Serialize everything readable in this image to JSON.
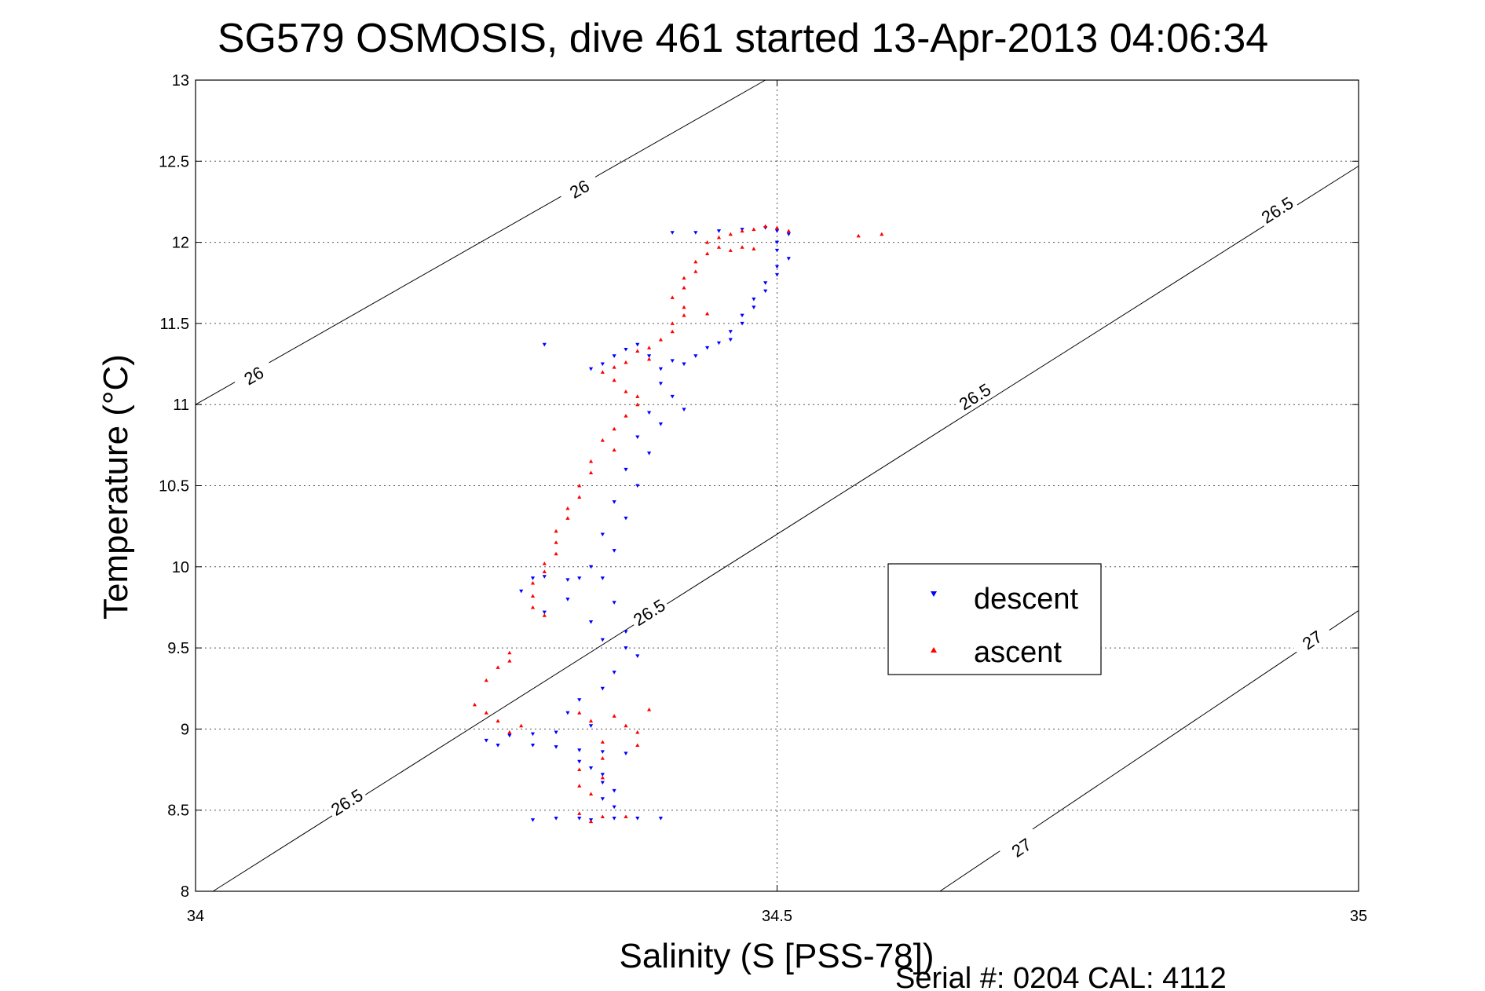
{
  "chart_data": {
    "type": "scatter",
    "title": "SG579 OSMOSIS, dive 461 started 13-Apr-2013 04:06:34",
    "xlabel": "Salinity (S [PSS-78])",
    "ylabel": "Temperature (°C)",
    "xlim": [
      34,
      35
    ],
    "ylim": [
      8,
      13
    ],
    "xticks": [
      "34",
      "34.5",
      "35"
    ],
    "yticks": [
      "8",
      "8.5",
      "9",
      "9.5",
      "10",
      "10.5",
      "11",
      "11.5",
      "12",
      "12.5",
      "13"
    ],
    "grid": true,
    "legend_position": "right-middle",
    "colors": {
      "descent": "#0000ff",
      "ascent": "#ff0000"
    },
    "legend": [
      "descent",
      "ascent"
    ],
    "density_contours": [
      {
        "value": "26",
        "line": [
          [
            34.0,
            11.0
          ],
          [
            34.49,
            13.0
          ]
        ],
        "labels": [
          {
            "x": 34.05,
            "y": 11.18
          },
          {
            "x": 34.33,
            "y": 12.33
          }
        ]
      },
      {
        "value": "26.5",
        "line": [
          [
            34.015,
            8.0
          ],
          [
            35.0,
            12.47
          ]
        ],
        "labels": [
          {
            "x": 34.13,
            "y": 8.55
          },
          {
            "x": 34.39,
            "y": 9.72
          },
          {
            "x": 34.67,
            "y": 11.05
          },
          {
            "x": 34.93,
            "y": 12.2
          }
        ]
      },
      {
        "value": "27",
        "line": [
          [
            34.64,
            8.0
          ],
          [
            35.0,
            9.73
          ]
        ],
        "labels": [
          {
            "x": 34.71,
            "y": 8.27
          },
          {
            "x": 34.96,
            "y": 9.55
          }
        ]
      }
    ],
    "series": [
      {
        "name": "descent",
        "marker": "triangle-down",
        "points": [
          [
            34.41,
            12.06
          ],
          [
            34.43,
            12.06
          ],
          [
            34.45,
            12.07
          ],
          [
            34.47,
            12.08
          ],
          [
            34.49,
            12.09
          ],
          [
            34.5,
            12.07
          ],
          [
            34.51,
            12.05
          ],
          [
            34.5,
            12.0
          ],
          [
            34.5,
            11.95
          ],
          [
            34.51,
            11.9
          ],
          [
            34.5,
            11.85
          ],
          [
            34.5,
            11.8
          ],
          [
            34.49,
            11.75
          ],
          [
            34.49,
            11.7
          ],
          [
            34.48,
            11.65
          ],
          [
            34.48,
            11.6
          ],
          [
            34.47,
            11.55
          ],
          [
            34.47,
            11.5
          ],
          [
            34.46,
            11.45
          ],
          [
            34.46,
            11.4
          ],
          [
            34.45,
            11.38
          ],
          [
            34.44,
            11.35
          ],
          [
            34.43,
            11.3
          ],
          [
            34.42,
            11.25
          ],
          [
            34.41,
            11.27
          ],
          [
            34.4,
            11.22
          ],
          [
            34.39,
            11.3
          ],
          [
            34.38,
            11.37
          ],
          [
            34.37,
            11.34
          ],
          [
            34.36,
            11.3
          ],
          [
            34.35,
            11.25
          ],
          [
            34.34,
            11.22
          ],
          [
            34.4,
            11.13
          ],
          [
            34.41,
            11.05
          ],
          [
            34.42,
            10.97
          ],
          [
            34.39,
            10.95
          ],
          [
            34.4,
            10.88
          ],
          [
            34.38,
            10.8
          ],
          [
            34.39,
            10.7
          ],
          [
            34.37,
            10.6
          ],
          [
            34.38,
            10.5
          ],
          [
            34.36,
            10.4
          ],
          [
            34.37,
            10.3
          ],
          [
            34.35,
            10.2
          ],
          [
            34.36,
            10.1
          ],
          [
            34.34,
            10.0
          ],
          [
            34.35,
            9.93
          ],
          [
            34.33,
            9.93
          ],
          [
            34.32,
            9.92
          ],
          [
            34.3,
            9.94
          ],
          [
            34.29,
            9.93
          ],
          [
            34.28,
            9.85
          ],
          [
            34.32,
            9.8
          ],
          [
            34.36,
            9.78
          ],
          [
            34.3,
            9.72
          ],
          [
            34.34,
            9.66
          ],
          [
            34.37,
            9.6
          ],
          [
            34.35,
            9.55
          ],
          [
            34.37,
            9.5
          ],
          [
            34.38,
            9.45
          ],
          [
            34.36,
            9.35
          ],
          [
            34.35,
            9.25
          ],
          [
            34.33,
            9.18
          ],
          [
            34.32,
            9.1
          ],
          [
            34.34,
            9.02
          ],
          [
            34.31,
            8.98
          ],
          [
            34.29,
            8.97
          ],
          [
            34.27,
            8.96
          ],
          [
            34.25,
            8.93
          ],
          [
            34.26,
            8.9
          ],
          [
            34.29,
            8.9
          ],
          [
            34.31,
            8.89
          ],
          [
            34.33,
            8.87
          ],
          [
            34.35,
            8.86
          ],
          [
            34.37,
            8.85
          ],
          [
            34.33,
            8.8
          ],
          [
            34.34,
            8.76
          ],
          [
            34.35,
            8.72
          ],
          [
            34.35,
            8.67
          ],
          [
            34.36,
            8.62
          ],
          [
            34.35,
            8.57
          ],
          [
            34.36,
            8.52
          ],
          [
            34.31,
            8.45
          ],
          [
            34.33,
            8.45
          ],
          [
            34.34,
            8.44
          ],
          [
            34.36,
            8.45
          ],
          [
            34.38,
            8.45
          ],
          [
            34.4,
            8.45
          ],
          [
            34.29,
            8.44
          ],
          [
            34.3,
            11.37
          ]
        ]
      },
      {
        "name": "ascent",
        "marker": "triangle-up",
        "points": [
          [
            34.51,
            12.07
          ],
          [
            34.5,
            12.09
          ],
          [
            34.49,
            12.1
          ],
          [
            34.48,
            12.08
          ],
          [
            34.47,
            12.07
          ],
          [
            34.46,
            12.05
          ],
          [
            34.45,
            12.03
          ],
          [
            34.44,
            12.0
          ],
          [
            34.45,
            11.97
          ],
          [
            34.46,
            11.95
          ],
          [
            34.47,
            11.97
          ],
          [
            34.48,
            11.96
          ],
          [
            34.44,
            11.93
          ],
          [
            34.43,
            11.88
          ],
          [
            34.43,
            11.82
          ],
          [
            34.42,
            11.78
          ],
          [
            34.42,
            11.72
          ],
          [
            34.41,
            11.66
          ],
          [
            34.42,
            11.6
          ],
          [
            34.44,
            11.56
          ],
          [
            34.42,
            11.55
          ],
          [
            34.41,
            11.5
          ],
          [
            34.41,
            11.45
          ],
          [
            34.4,
            11.4
          ],
          [
            34.39,
            11.35
          ],
          [
            34.38,
            11.33
          ],
          [
            34.39,
            11.28
          ],
          [
            34.37,
            11.26
          ],
          [
            34.36,
            11.23
          ],
          [
            34.35,
            11.2
          ],
          [
            34.36,
            11.15
          ],
          [
            34.37,
            11.08
          ],
          [
            34.38,
            11.05
          ],
          [
            34.38,
            11.0
          ],
          [
            34.37,
            10.93
          ],
          [
            34.36,
            10.85
          ],
          [
            34.35,
            10.78
          ],
          [
            34.36,
            10.72
          ],
          [
            34.34,
            10.65
          ],
          [
            34.34,
            10.58
          ],
          [
            34.33,
            10.5
          ],
          [
            34.33,
            10.43
          ],
          [
            34.32,
            10.36
          ],
          [
            34.32,
            10.3
          ],
          [
            34.31,
            10.22
          ],
          [
            34.31,
            10.15
          ],
          [
            34.31,
            10.08
          ],
          [
            34.3,
            10.02
          ],
          [
            34.3,
            9.97
          ],
          [
            34.29,
            9.9
          ],
          [
            34.29,
            9.82
          ],
          [
            34.29,
            9.75
          ],
          [
            34.3,
            9.7
          ],
          [
            34.27,
            9.47
          ],
          [
            34.27,
            9.42
          ],
          [
            34.26,
            9.38
          ],
          [
            34.25,
            9.3
          ],
          [
            34.24,
            9.15
          ],
          [
            34.25,
            9.1
          ],
          [
            34.26,
            9.05
          ],
          [
            34.28,
            9.02
          ],
          [
            34.27,
            8.98
          ],
          [
            34.33,
            9.1
          ],
          [
            34.34,
            9.05
          ],
          [
            34.36,
            9.08
          ],
          [
            34.37,
            9.02
          ],
          [
            34.38,
            8.98
          ],
          [
            34.39,
            9.12
          ],
          [
            34.38,
            8.9
          ],
          [
            34.35,
            8.92
          ],
          [
            34.35,
            8.82
          ],
          [
            34.33,
            8.75
          ],
          [
            34.35,
            8.7
          ],
          [
            34.33,
            8.65
          ],
          [
            34.34,
            8.6
          ],
          [
            34.33,
            8.48
          ],
          [
            34.35,
            8.46
          ],
          [
            34.37,
            8.46
          ],
          [
            34.34,
            8.43
          ],
          [
            34.57,
            12.04
          ],
          [
            34.59,
            12.05
          ]
        ]
      }
    ]
  },
  "footer": "Serial #: 0204  CAL: 4112"
}
